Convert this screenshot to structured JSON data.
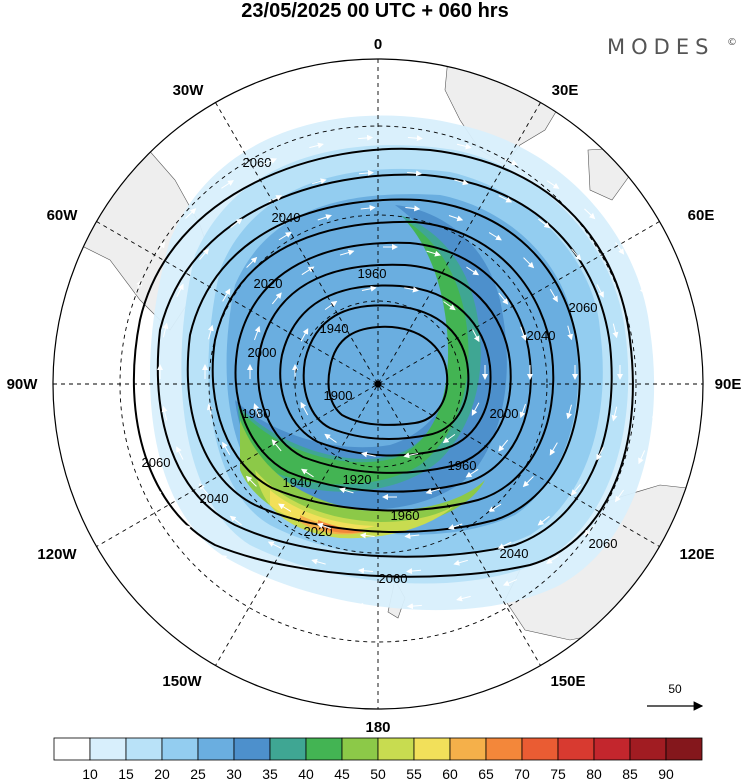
{
  "header": {
    "title": "23/05/2025  00 UTC  + 060 hrs",
    "brand": "MODES",
    "brand_mark": "©"
  },
  "map": {
    "projection": "south-polar-stereographic",
    "background_color": "#ffffff",
    "land_color": "#efefef",
    "longitude_labels": [
      {
        "text": "0",
        "lon": 0
      },
      {
        "text": "30E",
        "lon": 30
      },
      {
        "text": "60E",
        "lon": 60
      },
      {
        "text": "90E",
        "lon": 90
      },
      {
        "text": "120E",
        "lon": 120
      },
      {
        "text": "150E",
        "lon": 150
      },
      {
        "text": "180",
        "lon": 180
      },
      {
        "text": "150W",
        "lon": -150
      },
      {
        "text": "120W",
        "lon": -120
      },
      {
        "text": "90W",
        "lon": -90
      },
      {
        "text": "60W",
        "lon": -60
      },
      {
        "text": "30W",
        "lon": -30
      }
    ],
    "geopotential_contours": {
      "interval": 20,
      "labels": [
        {
          "text": "2060"
        },
        {
          "text": "2040"
        },
        {
          "text": "2020"
        },
        {
          "text": "1960"
        },
        {
          "text": "1940"
        },
        {
          "text": "2000"
        },
        {
          "text": "1900"
        },
        {
          "text": "1980"
        },
        {
          "text": "2040"
        },
        {
          "text": "2060"
        },
        {
          "text": "2000"
        },
        {
          "text": "1960"
        },
        {
          "text": "1920"
        },
        {
          "text": "1940"
        },
        {
          "text": "1960"
        },
        {
          "text": "2060"
        },
        {
          "text": "2040"
        },
        {
          "text": "2020"
        },
        {
          "text": "2040"
        },
        {
          "text": "2060"
        },
        {
          "text": "2060"
        }
      ]
    },
    "wind_reference_vector": {
      "label": "50"
    }
  },
  "colorbar": {
    "levels": [
      "10",
      "15",
      "20",
      "25",
      "30",
      "35",
      "40",
      "45",
      "50",
      "55",
      "60",
      "65",
      "70",
      "75",
      "80",
      "85",
      "90"
    ],
    "colors": [
      "#ffffff",
      "#d8effc",
      "#b9e2f8",
      "#93cdf0",
      "#6aaee0",
      "#4d90cc",
      "#3fa693",
      "#43b453",
      "#8cc948",
      "#c8dc50",
      "#f2e05a",
      "#f5b04a",
      "#f3873a",
      "#ea5c33",
      "#d83a30",
      "#c3262d",
      "#a11c22",
      "#84171c"
    ]
  }
}
